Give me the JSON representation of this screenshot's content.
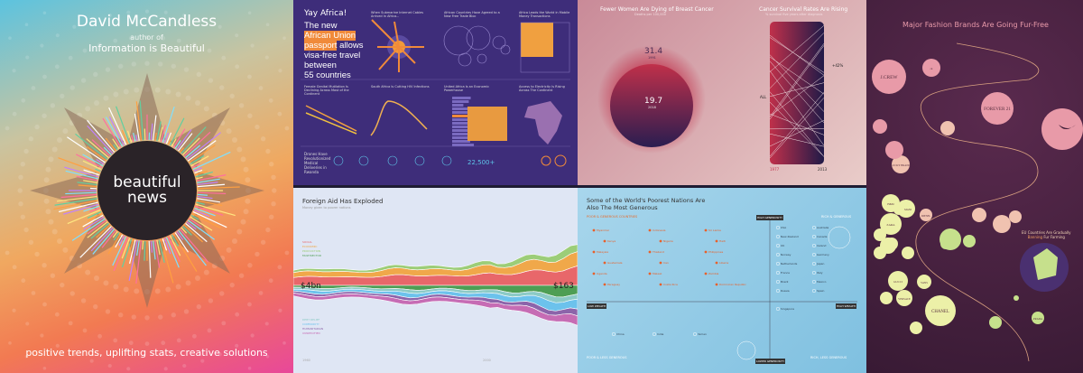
{
  "cover": {
    "author": "David McCandless",
    "author_of": "author of",
    "book": "Information is Beautiful",
    "logo": "beautiful news",
    "tagline": "positive trends, uplifting stats, creative solutions"
  },
  "africa": {
    "title": "Yay Africa!",
    "headline_1": "The new",
    "headline_hl1": "African Union",
    "headline_hl2": "passport",
    "headline_2": "allows",
    "headline_3": "visa-free travel",
    "headline_4": "between",
    "headline_5": "55 countries",
    "sub": [
      "When Submarine Internet Cables Arrived In Africa...",
      "African Countries Have Agreed to a New Free Trade Bloc",
      "Africa Leads the World in Mobile Money Transactions",
      "Female Genital Mutilation Is Declining Across Most of the Continent",
      "South Africa Is Cutting HIV Infections",
      "United Africa Is an Economic Powerhouse",
      "Access to Electricity Is Rising Across The Continent",
      "Drones Have Revolutionized Medical Deliveries in Rwanda"
    ],
    "stat": "22,500+"
  },
  "cancer": {
    "title1": "Fewer Women Are Dying of Breast Cancer",
    "sub1": "Deaths per 100,000",
    "big": "31.4",
    "big_year": "1991",
    "small": "19.7",
    "small_year": "2018",
    "title2": "Cancer Survival Rates Are Rising",
    "sub2": "% survival five years after diagnosis",
    "all": "ALL",
    "delta": "+42%",
    "year_a": "1977",
    "year_b": "2013"
  },
  "fur": {
    "title": "Major Fashion Brands Are Going Fur-Free",
    "brands": [
      "J.CREW",
      "ck",
      "FOREVER 21",
      "LUCKY BRAND",
      "H&M",
      "ZARA",
      "GUCCI",
      "VERSACE",
      "CHANEL",
      "DIESEL",
      "PRADA",
      "VANS",
      "ARMANI"
    ],
    "eu_title": "EU Countries Are Gradually",
    "eu_hl": "Banning",
    "eu_rest": "Fur Farming",
    "colors": {
      "pink": "#e89aa8",
      "peach": "#f0c2b0",
      "yellow": "#ecf0a8",
      "green": "#c6e08c"
    }
  },
  "aid": {
    "title": "Foreign Aid Has Exploded",
    "sub": "Money given to poorer nations",
    "start": "$4bn",
    "end": "$163",
    "legend_top": [
      "SOCIAL",
      "ECONOMIC",
      "PRODUCTION",
      "MULTISECTOR"
    ],
    "legend_bottom": [
      "DEBT RELIEF",
      "COMMODITY",
      "HUMANITARIAN",
      "UNSPECIFIED"
    ],
    "x_start": "1960",
    "x_mid": "2000",
    "colors": [
      "#e8676a",
      "#f0a84a",
      "#9ccd78",
      "#4e9e54",
      "#8ccac6",
      "#6cc2ec",
      "#8c64aa",
      "#c66cb4"
    ]
  },
  "gen": {
    "title1": "Some of the World's Poorest Nations Are",
    "title2": "Also The Most Generous",
    "q_tl": "POOR & GENEROUS COUNTRIES",
    "q_tr": "RICH & GENEROUS",
    "q_bl": "POOR & LESS GENEROUS",
    "q_br": "RICH, LESS GENEROUS",
    "ax_top": "HIGH GENEROSITY",
    "ax_bottom": "LOWER GENEROSITY",
    "ax_left": "LOW WEALTH",
    "ax_right": "HIGH WEALTH",
    "orange": [
      "Myanmar",
      "Indonesia",
      "Sri Lanka",
      "Kenya",
      "Nigeria",
      "Haiti",
      "Malaysia",
      "Thailand",
      "Philippines",
      "Guatemala",
      "Iran",
      "Liberia",
      "Uganda",
      "Malawi",
      "Zambia",
      "Paraguay",
      "Costa Rica",
      "Dominican Republic"
    ],
    "white": [
      "USA",
      "Australia",
      "New Zealand",
      "Canada",
      "UK",
      "Ireland",
      "Norway",
      "Germany",
      "Netherlands",
      "Japan",
      "China",
      "India",
      "France",
      "Italy",
      "Brazil",
      "Mexico",
      "Russia",
      "Spain",
      "Singapore",
      "Yemen"
    ]
  }
}
